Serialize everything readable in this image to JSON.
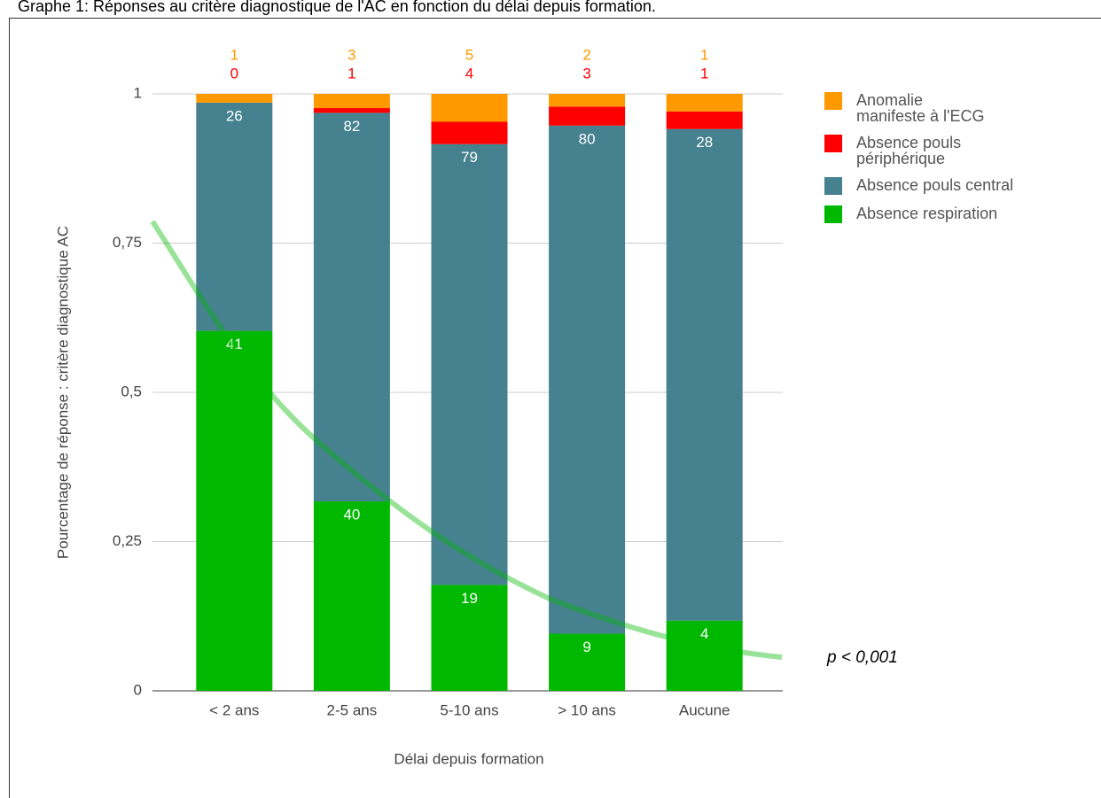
{
  "chart_data": {
    "type": "bar",
    "stacking": "percent",
    "title": "Graphe 1: Réponses au critère diagnostique de l'AC en fonction du délai depuis formation.",
    "x_label": "Délai depuis formation",
    "y_label": "Pourcentage de réponse : critère diagnostique AC",
    "annotation": "p < 0,001",
    "categories": [
      "< 2 ans",
      "2-5 ans",
      "5-10 ans",
      "> 10 ans",
      "Aucune"
    ],
    "series": [
      {
        "name": "Anomalie manifeste à l'ECG",
        "color": "#ff9900",
        "values": [
          1,
          3,
          5,
          2,
          1
        ]
      },
      {
        "name": "Absence pouls périphérique",
        "color": "#ff0000",
        "values": [
          0,
          1,
          4,
          3,
          1
        ]
      },
      {
        "name": "Absence pouls central",
        "color": "#45818e",
        "values": [
          26,
          82,
          79,
          80,
          28
        ]
      },
      {
        "name": "Absence respiration",
        "color": "#00b800",
        "values": [
          41,
          40,
          19,
          9,
          4
        ]
      }
    ],
    "ylim": [
      0,
      1
    ],
    "yticks": [
      0,
      {
        "value": 0.25,
        "label": "0,25"
      },
      {
        "value": 0.5,
        "label": "0,5"
      },
      {
        "value": 0.75,
        "label": "0,75"
      },
      1
    ],
    "grid": true,
    "legend": "right"
  }
}
